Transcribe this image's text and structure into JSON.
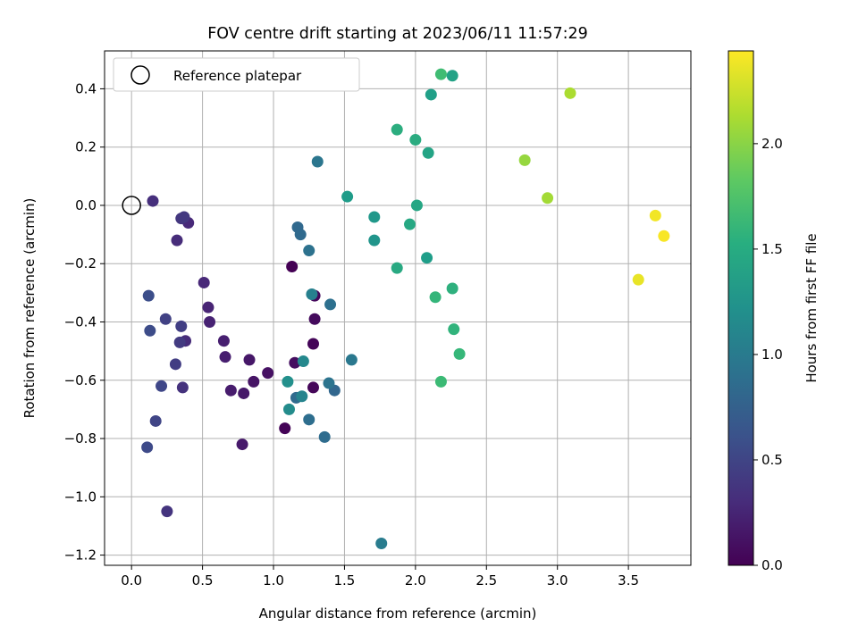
{
  "chart_data": {
    "type": "scatter",
    "title": "FOV centre drift starting at 2023/06/11 11:57:29",
    "xlabel": "Angular distance from reference (arcmin)",
    "ylabel": "Rotation from reference (arcmin)",
    "xlim": [
      -0.19,
      3.94
    ],
    "ylim": [
      -1.235,
      0.53
    ],
    "xticks": [
      0.0,
      0.5,
      1.0,
      1.5,
      2.0,
      2.5,
      3.0,
      3.5
    ],
    "xtick_labels": [
      "0.0",
      "0.5",
      "1.0",
      "1.5",
      "2.0",
      "2.5",
      "3.0",
      "3.5"
    ],
    "yticks": [
      0.4,
      0.2,
      0.0,
      -0.2,
      -0.4,
      -0.6,
      -0.8,
      -1.0,
      -1.2
    ],
    "ytick_labels": [
      "0.4",
      "0.2",
      "0.0",
      "−0.2",
      "−0.4",
      "−0.6",
      "−0.8",
      "−1.0",
      "−1.2"
    ],
    "grid": true,
    "legend": {
      "position": "top-left",
      "entries": [
        "Reference platepar"
      ]
    },
    "reference_point": {
      "label": "Reference platepar",
      "x": 0.0,
      "y": 0.0
    },
    "colorbar": {
      "label": "Hours from first FF file",
      "range": [
        0.0,
        2.44
      ],
      "colormap": "viridis",
      "ticks": [
        0.0,
        0.5,
        1.0,
        1.5,
        2.0
      ],
      "tick_labels": [
        "0.0",
        "0.5",
        "1.0",
        "1.5",
        "2.0"
      ]
    },
    "series": [
      {
        "color_by": "hours",
        "points": [
          {
            "x": 1.13,
            "y": -0.21,
            "c": 0.0
          },
          {
            "x": 1.08,
            "y": -0.765,
            "c": 0.02
          },
          {
            "x": 1.28,
            "y": -0.475,
            "c": 0.03
          },
          {
            "x": 1.28,
            "y": -0.625,
            "c": 0.04
          },
          {
            "x": 1.29,
            "y": -0.31,
            "c": 0.05
          },
          {
            "x": 1.29,
            "y": -0.39,
            "c": 0.07
          },
          {
            "x": 1.15,
            "y": -0.54,
            "c": 0.09
          },
          {
            "x": 0.96,
            "y": -0.575,
            "c": 0.11
          },
          {
            "x": 0.86,
            "y": -0.605,
            "c": 0.13
          },
          {
            "x": 0.83,
            "y": -0.53,
            "c": 0.15
          },
          {
            "x": 0.79,
            "y": -0.645,
            "c": 0.16
          },
          {
            "x": 0.78,
            "y": -0.82,
            "c": 0.17
          },
          {
            "x": 0.7,
            "y": -0.635,
            "c": 0.19
          },
          {
            "x": 0.66,
            "y": -0.52,
            "c": 0.2
          },
          {
            "x": 0.65,
            "y": -0.465,
            "c": 0.21
          },
          {
            "x": 0.55,
            "y": -0.4,
            "c": 0.23
          },
          {
            "x": 0.54,
            "y": -0.35,
            "c": 0.25
          },
          {
            "x": 0.51,
            "y": -0.265,
            "c": 0.27
          },
          {
            "x": 0.4,
            "y": -0.06,
            "c": 0.28
          },
          {
            "x": 0.38,
            "y": -0.465,
            "c": 0.3
          },
          {
            "x": 0.32,
            "y": -0.12,
            "c": 0.31
          },
          {
            "x": 0.15,
            "y": 0.015,
            "c": 0.33
          },
          {
            "x": 0.36,
            "y": -0.625,
            "c": 0.35
          },
          {
            "x": 0.25,
            "y": -1.05,
            "c": 0.37
          },
          {
            "x": 0.35,
            "y": -0.045,
            "c": 0.39
          },
          {
            "x": 0.37,
            "y": -0.04,
            "c": 0.4
          },
          {
            "x": 0.34,
            "y": -0.47,
            "c": 0.42
          },
          {
            "x": 0.31,
            "y": -0.545,
            "c": 0.44
          },
          {
            "x": 0.35,
            "y": -0.415,
            "c": 0.45
          },
          {
            "x": 0.24,
            "y": -0.39,
            "c": 0.47
          },
          {
            "x": 0.17,
            "y": -0.74,
            "c": 0.5
          },
          {
            "x": 0.21,
            "y": -0.62,
            "c": 0.52
          },
          {
            "x": 0.11,
            "y": -0.83,
            "c": 0.54
          },
          {
            "x": 0.13,
            "y": -0.43,
            "c": 0.56
          },
          {
            "x": 0.12,
            "y": -0.31,
            "c": 0.58
          },
          {
            "x": 1.43,
            "y": -0.635,
            "c": 0.8
          },
          {
            "x": 1.17,
            "y": -0.075,
            "c": 0.82
          },
          {
            "x": 1.19,
            "y": -0.1,
            "c": 0.83
          },
          {
            "x": 1.16,
            "y": -0.66,
            "c": 0.84
          },
          {
            "x": 1.36,
            "y": -0.795,
            "c": 0.86
          },
          {
            "x": 1.25,
            "y": -0.735,
            "c": 0.88
          },
          {
            "x": 1.4,
            "y": -0.34,
            "c": 0.9
          },
          {
            "x": 1.25,
            "y": -0.155,
            "c": 0.92
          },
          {
            "x": 1.39,
            "y": -0.61,
            "c": 0.94
          },
          {
            "x": 1.31,
            "y": 0.15,
            "c": 0.96
          },
          {
            "x": 1.55,
            "y": -0.53,
            "c": 0.98
          },
          {
            "x": 1.76,
            "y": -1.16,
            "c": 1.02
          },
          {
            "x": 1.27,
            "y": -0.305,
            "c": 1.06
          },
          {
            "x": 1.2,
            "y": -0.655,
            "c": 1.1
          },
          {
            "x": 1.21,
            "y": -0.535,
            "c": 1.14
          },
          {
            "x": 1.11,
            "y": -0.7,
            "c": 1.18
          },
          {
            "x": 1.1,
            "y": -0.605,
            "c": 1.22
          },
          {
            "x": 1.71,
            "y": -0.12,
            "c": 1.27
          },
          {
            "x": 1.71,
            "y": -0.04,
            "c": 1.3
          },
          {
            "x": 1.52,
            "y": 0.03,
            "c": 1.34
          },
          {
            "x": 2.08,
            "y": -0.18,
            "c": 1.36
          },
          {
            "x": 2.11,
            "y": 0.38,
            "c": 1.38
          },
          {
            "x": 2.26,
            "y": 0.445,
            "c": 1.4
          },
          {
            "x": 2.09,
            "y": 0.18,
            "c": 1.42
          },
          {
            "x": 2.01,
            "y": 0.0,
            "c": 1.44
          },
          {
            "x": 1.96,
            "y": -0.065,
            "c": 1.46
          },
          {
            "x": 1.87,
            "y": -0.215,
            "c": 1.48
          },
          {
            "x": 2.0,
            "y": 0.225,
            "c": 1.5
          },
          {
            "x": 1.87,
            "y": 0.26,
            "c": 1.52
          },
          {
            "x": 2.26,
            "y": -0.285,
            "c": 1.55
          },
          {
            "x": 2.27,
            "y": -0.425,
            "c": 1.58
          },
          {
            "x": 2.14,
            "y": -0.315,
            "c": 1.61
          },
          {
            "x": 2.31,
            "y": -0.51,
            "c": 1.63
          },
          {
            "x": 2.18,
            "y": -0.605,
            "c": 1.66
          },
          {
            "x": 2.18,
            "y": 0.45,
            "c": 1.68
          },
          {
            "x": 2.77,
            "y": 0.155,
            "c": 2.05
          },
          {
            "x": 2.93,
            "y": 0.025,
            "c": 2.1
          },
          {
            "x": 3.09,
            "y": 0.385,
            "c": 2.13
          },
          {
            "x": 3.57,
            "y": -0.255,
            "c": 2.36
          },
          {
            "x": 3.69,
            "y": -0.035,
            "c": 2.4
          },
          {
            "x": 3.75,
            "y": -0.105,
            "c": 2.42
          }
        ]
      }
    ]
  }
}
